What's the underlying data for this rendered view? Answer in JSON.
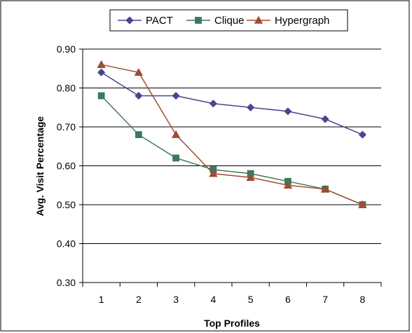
{
  "chart_data": {
    "type": "line",
    "title": "",
    "xlabel": "Top Profiles",
    "ylabel": "Avg. Visit Percentage",
    "x": [
      1,
      2,
      3,
      4,
      5,
      6,
      7,
      8
    ],
    "x_tick_labels": [
      "1",
      "2",
      "3",
      "4",
      "5",
      "6",
      "7",
      "8"
    ],
    "y_tick_labels": [
      "0.30",
      "0.40",
      "0.50",
      "0.60",
      "0.70",
      "0.80",
      "0.90"
    ],
    "ylim": [
      0.3,
      0.9
    ],
    "grid": "horizontal",
    "legend_position": "top",
    "series": [
      {
        "name": "PACT",
        "color": "#4a4590",
        "marker": "diamond",
        "values": [
          0.84,
          0.78,
          0.78,
          0.76,
          0.75,
          0.74,
          0.72,
          0.68
        ]
      },
      {
        "name": "Clique",
        "color": "#3a7a5e",
        "marker": "square",
        "values": [
          0.78,
          0.68,
          0.62,
          0.59,
          0.58,
          0.56,
          0.54,
          0.5
        ]
      },
      {
        "name": "Hypergraph",
        "color": "#a24b32",
        "marker": "triangle",
        "values": [
          0.86,
          0.84,
          0.68,
          0.58,
          0.57,
          0.55,
          0.54,
          0.5
        ]
      }
    ]
  }
}
